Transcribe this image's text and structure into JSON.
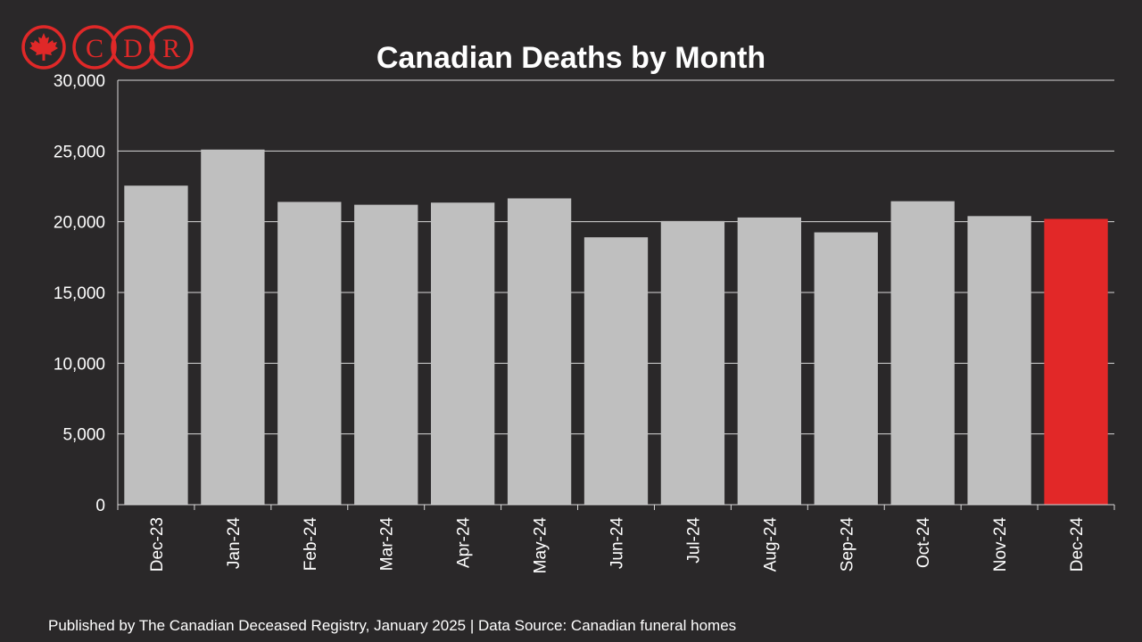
{
  "logo": {
    "letters": [
      "C",
      "D",
      "R"
    ],
    "icon": "maple-leaf-icon",
    "color": "#e02828"
  },
  "chart_data": {
    "type": "bar",
    "title": "Canadian Deaths by Month",
    "xlabel": "",
    "ylabel": "",
    "categories": [
      "Dec-23",
      "Jan-24",
      "Feb-24",
      "Mar-24",
      "Apr-24",
      "May-24",
      "Jun-24",
      "Jul-24",
      "Aug-24",
      "Sep-24",
      "Oct-24",
      "Nov-24",
      "Dec-24"
    ],
    "values": [
      22550,
      25100,
      21400,
      21200,
      21350,
      21650,
      18900,
      20050,
      20300,
      19250,
      21450,
      20400,
      20200
    ],
    "bar_colors": [
      "#bfbfbf",
      "#bfbfbf",
      "#bfbfbf",
      "#bfbfbf",
      "#bfbfbf",
      "#bfbfbf",
      "#bfbfbf",
      "#bfbfbf",
      "#bfbfbf",
      "#bfbfbf",
      "#bfbfbf",
      "#bfbfbf",
      "#e22828"
    ],
    "ylim": [
      0,
      30000
    ],
    "yticks": [
      0,
      5000,
      10000,
      15000,
      20000,
      25000,
      30000
    ],
    "ytick_labels": [
      "0",
      "5,000",
      "10,000",
      "15,000",
      "20,000",
      "25,000",
      "30,000"
    ],
    "grid": true,
    "legend": "none"
  },
  "footer": {
    "text": "Published by The Canadian Deceased Registry, January 2025 | Data Source: Canadian funeral homes"
  }
}
